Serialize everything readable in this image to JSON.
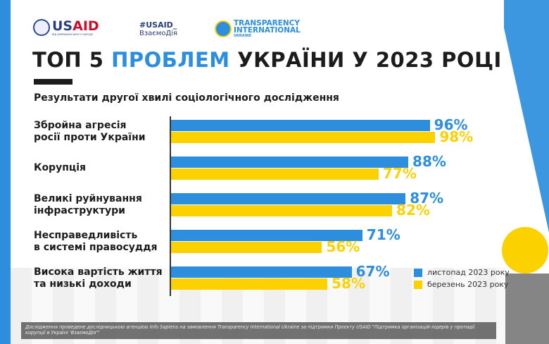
{
  "header": {
    "usaid": "USAID",
    "usaid_tag": "ВІД АМЕРИКАНСЬКОГО НАРОДУ",
    "hashtag": "#USAID_",
    "hashtag2": "ВзаємоДія",
    "ti1": "TRANSPARENCY",
    "ti2": "INTERNATIONAL",
    "ti3": "UKRAINE"
  },
  "title": {
    "part1": "ТОП 5 ",
    "part2": "ПРОБЛЕМ",
    "part3": " УКРАЇНИ У 2023 РОЦІ"
  },
  "subtitle": "Результати другої хвилі соціологічного дослідження",
  "colors": {
    "blue": "#2e8ede",
    "yellow": "#fcd100"
  },
  "chart_data": {
    "type": "bar",
    "orientation": "horizontal",
    "categories": [
      "Збройна агресія\nросії проти України",
      "Корупція",
      "Великі руйнування\nінфраструктури",
      "Несправедливість\nв системі правосуддя",
      "Висока вартість життя\nта низькі доходи"
    ],
    "series": [
      {
        "name": "листопад 2023 року",
        "color": "#2e8ede",
        "values": [
          96,
          88,
          87,
          71,
          67
        ],
        "labels": [
          "96%",
          "88%",
          "87%",
          "71%",
          "67%"
        ]
      },
      {
        "name": "березень 2023 року",
        "color": "#fcd100",
        "values": [
          98,
          77,
          82,
          56,
          58
        ],
        "labels": [
          "98%",
          "77%",
          "82%",
          "56%",
          "58%"
        ]
      }
    ],
    "xlim": [
      0,
      100
    ],
    "legend": "bottom-right",
    "grid": false
  },
  "footer": "Дослідження проведене дослідницькою агенцією Info Sapiens на замовлення Transparency International Ukraine за підтримки Проєкту USAID \"Підтримка організацій-лідерів у протидії корупції в Україні 'ВзаємоДія'\""
}
